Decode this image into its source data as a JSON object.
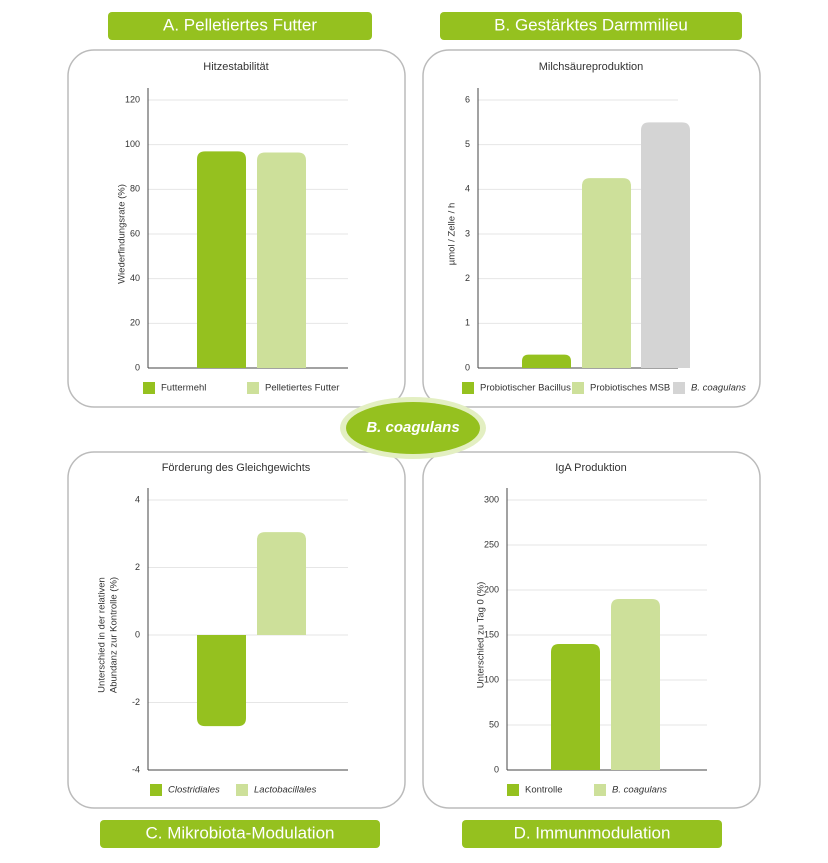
{
  "panel_titles": [
    "A. Pelletiertes Futter",
    "B. Gestärktes Darmmilieu",
    "C. Mikrobiota-Modulation",
    "D. Immunmodulation"
  ],
  "center_label": "B. coagulans",
  "chart_data": [
    {
      "type": "bar",
      "title": "Hitzestabilität",
      "y_label": [
        "Wiederfindungsrate (%)"
      ],
      "categories": [
        "Futtermehl",
        "Pelletiertes Futter"
      ],
      "values": [
        97,
        96.5
      ],
      "colors": [
        "#95c11f",
        "#cde09a"
      ],
      "ylim": [
        0,
        120
      ],
      "yticks": [
        0,
        20,
        40,
        60,
        80,
        100,
        120
      ],
      "grid": true
    },
    {
      "type": "bar",
      "title": "Milchsäureproduktion",
      "y_label": [
        "µmol / Zelle / h"
      ],
      "categories": [
        "Probiotischer Bacillus",
        "Probiotisches MSB",
        "B. coagulans"
      ],
      "values": [
        0.3,
        4.25,
        5.5
      ],
      "colors": [
        "#95c11f",
        "#cde09a",
        "#d4d4d4"
      ],
      "ylim": [
        0,
        6
      ],
      "yticks": [
        0,
        1,
        2,
        3,
        4,
        5,
        6
      ],
      "grid": true
    },
    {
      "type": "bar",
      "title": "Förderung des Gleichgewichts",
      "y_label": [
        "Unterschied in der relativen",
        "Abundanz zur Kontrolle (%)"
      ],
      "categories": [
        "Clostridiales",
        "Lactobacillales"
      ],
      "values": [
        -2.7,
        3.05
      ],
      "colors": [
        "#95c11f",
        "#cde09a"
      ],
      "ylim": [
        -4,
        4
      ],
      "yticks": [
        -4,
        -2,
        0,
        2,
        4
      ],
      "grid": true
    },
    {
      "type": "bar",
      "title": "IgA Produktion",
      "y_label": [
        "Unterschied zu Tag 0 (%)"
      ],
      "categories": [
        "Kontrolle",
        "B. coagulans"
      ],
      "values": [
        140,
        190
      ],
      "colors": [
        "#95c11f",
        "#cde09a"
      ],
      "ylim": [
        0,
        300
      ],
      "yticks": [
        0,
        50,
        100,
        150,
        200,
        250,
        300
      ],
      "grid": true
    }
  ]
}
